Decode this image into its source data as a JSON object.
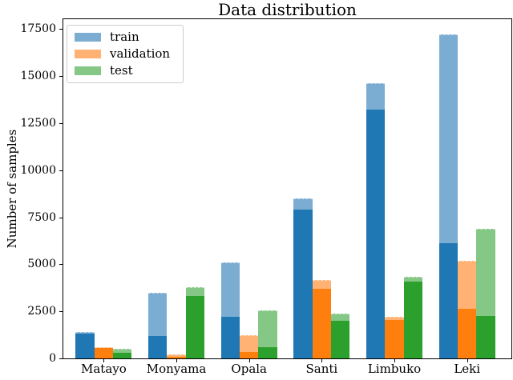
{
  "chart_data": {
    "type": "bar",
    "title": "Data distribution",
    "ylabel": "Number of samples",
    "xlabel": "",
    "categories": [
      "Matayo",
      "Monyama",
      "Opala",
      "Santi",
      "Limbuko",
      "Leki"
    ],
    "yticks": [
      0,
      2500,
      5000,
      7500,
      10000,
      12500,
      15000,
      17500
    ],
    "ylim": [
      0,
      18020
    ],
    "grid": false,
    "legend_position": "upper left",
    "legend_entries": [
      "train",
      "validation",
      "test"
    ],
    "series": [
      {
        "name": "train",
        "solid_color": "#1f77b4",
        "translucent_color": "#7badd3",
        "solid_values": [
          1300,
          1200,
          2200,
          7900,
          13200,
          6100
        ],
        "translucent_values": [
          1400,
          3500,
          5100,
          8500,
          14600,
          17200
        ]
      },
      {
        "name": "validation",
        "solid_color": "#ff7f0e",
        "translucent_color": "#ffb273",
        "solid_values": [
          550,
          80,
          350,
          3700,
          2050,
          2650
        ],
        "translucent_values": [
          600,
          220,
          1250,
          4150,
          2200,
          5200
        ]
      },
      {
        "name": "test",
        "solid_color": "#2ca02c",
        "translucent_color": "#85c785",
        "solid_values": [
          300,
          3300,
          600,
          2000,
          4100,
          2250
        ],
        "translucent_values": [
          500,
          3800,
          2550,
          2400,
          4350,
          6900
        ]
      }
    ]
  }
}
